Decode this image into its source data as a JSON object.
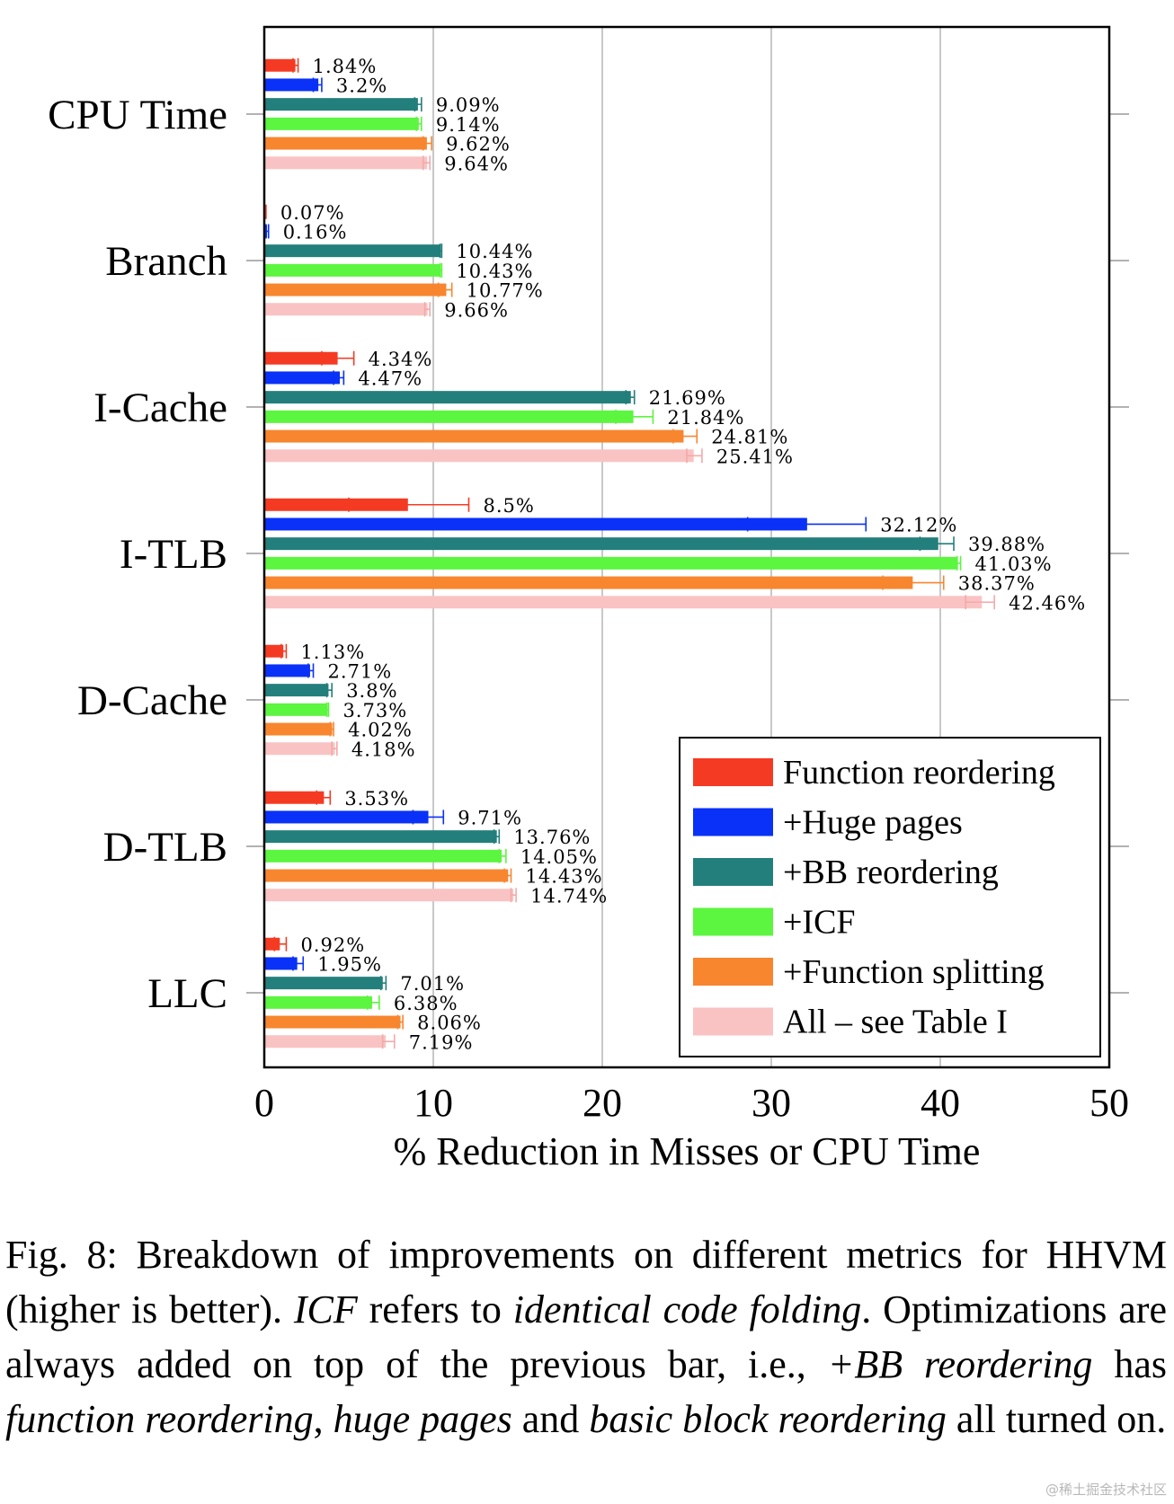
{
  "chart_data": {
    "type": "bar",
    "orientation": "horizontal",
    "title": "",
    "xlabel": "% Reduction in Misses or CPU Time",
    "ylabel": "",
    "xlim": [
      0,
      50
    ],
    "xticks": [
      0,
      10,
      20,
      30,
      40,
      50
    ],
    "grid": "vertical",
    "legend_position": "bottom-right",
    "categories": [
      "CPU Time",
      "Branch",
      "I-Cache",
      "I-TLB",
      "D-Cache",
      "D-TLB",
      "LLC"
    ],
    "series": [
      {
        "name": "Function reordering",
        "color": "#f53a23",
        "values": [
          1.84,
          0.07,
          4.34,
          8.5,
          1.13,
          3.53,
          0.92
        ],
        "labels": [
          "1.84%",
          "0.07%",
          "4.34%",
          "8.5%",
          "1.13%",
          "3.53%",
          "0.92%"
        ],
        "error_low": [
          1.7,
          0.05,
          3.4,
          5.0,
          1.0,
          3.1,
          0.6
        ],
        "error_high": [
          2.0,
          0.1,
          5.3,
          12.1,
          1.3,
          3.9,
          1.3
        ]
      },
      {
        "name": "+Huge pages",
        "color": "#0a31f7",
        "values": [
          3.2,
          0.16,
          4.47,
          32.12,
          2.71,
          9.71,
          1.95
        ],
        "labels": [
          "3.2%",
          "0.16%",
          "4.47%",
          "32.12%",
          "2.71%",
          "9.71%",
          "1.95%"
        ],
        "error_low": [
          2.9,
          0.1,
          4.1,
          28.6,
          2.6,
          8.8,
          1.7
        ],
        "error_high": [
          3.4,
          0.25,
          4.7,
          35.6,
          2.9,
          10.6,
          2.3
        ]
      },
      {
        "name": "+BB reordering",
        "color": "#237f7b",
        "values": [
          9.09,
          10.44,
          21.69,
          39.88,
          3.8,
          13.76,
          7.01
        ],
        "labels": [
          "9.09%",
          "10.44%",
          "21.69%",
          "39.88%",
          "3.8%",
          "13.76%",
          "7.01%"
        ],
        "error_low": [
          8.9,
          10.4,
          21.4,
          38.8,
          3.7,
          13.6,
          6.9
        ],
        "error_high": [
          9.3,
          10.5,
          21.9,
          40.8,
          4.0,
          13.9,
          7.2
        ]
      },
      {
        "name": "+ICF",
        "color": "#5cf53f",
        "values": [
          9.14,
          10.43,
          21.84,
          41.03,
          3.73,
          14.05,
          6.38
        ],
        "labels": [
          "9.14%",
          "10.43%",
          "21.84%",
          "41.03%",
          "3.73%",
          "14.05%",
          "6.38%"
        ],
        "error_low": [
          9.0,
          10.4,
          20.8,
          41.0,
          3.7,
          13.9,
          6.1
        ],
        "error_high": [
          9.3,
          10.5,
          23.0,
          41.2,
          3.8,
          14.3,
          6.8
        ]
      },
      {
        "name": "+Function splitting",
        "color": "#f7862f",
        "values": [
          9.62,
          10.77,
          24.81,
          38.37,
          4.02,
          14.43,
          8.06
        ],
        "labels": [
          "9.62%",
          "10.77%",
          "24.81%",
          "38.37%",
          "4.02%",
          "14.43%",
          "8.06%"
        ],
        "error_low": [
          9.4,
          10.3,
          24.2,
          36.6,
          3.9,
          14.2,
          7.9
        ],
        "error_high": [
          9.9,
          11.1,
          25.6,
          40.2,
          4.1,
          14.6,
          8.2
        ]
      },
      {
        "name": "All – see Table I",
        "color": "#fac3c3",
        "values": [
          9.64,
          9.66,
          25.41,
          42.46,
          4.18,
          14.74,
          7.19
        ],
        "labels": [
          "9.64%",
          "9.66%",
          "25.41%",
          "42.46%",
          "4.18%",
          "14.74%",
          "7.19%"
        ],
        "error_low": [
          9.4,
          9.5,
          25.0,
          41.5,
          4.0,
          14.6,
          7.0
        ],
        "error_high": [
          9.8,
          9.8,
          25.9,
          43.2,
          4.3,
          14.9,
          7.7
        ]
      }
    ]
  },
  "caption": {
    "prefix": "Fig. 8: Breakdown of improvements on different metrics for HHVM (higher is better). ",
    "icf": "ICF",
    "refers": " refers to ",
    "icf_full": "identical code folding",
    "period": ". Optimizations are always added on top of the previous bar, i.e., ",
    "bb": "+BB reordering",
    "has": " has ",
    "fr": "function reordering",
    "comma": ", ",
    "hp": "huge pages",
    "and": " and ",
    "bbr": "basic block reordering",
    "suffix": " all turned on."
  },
  "watermark": "@稀土掘金技术社区"
}
